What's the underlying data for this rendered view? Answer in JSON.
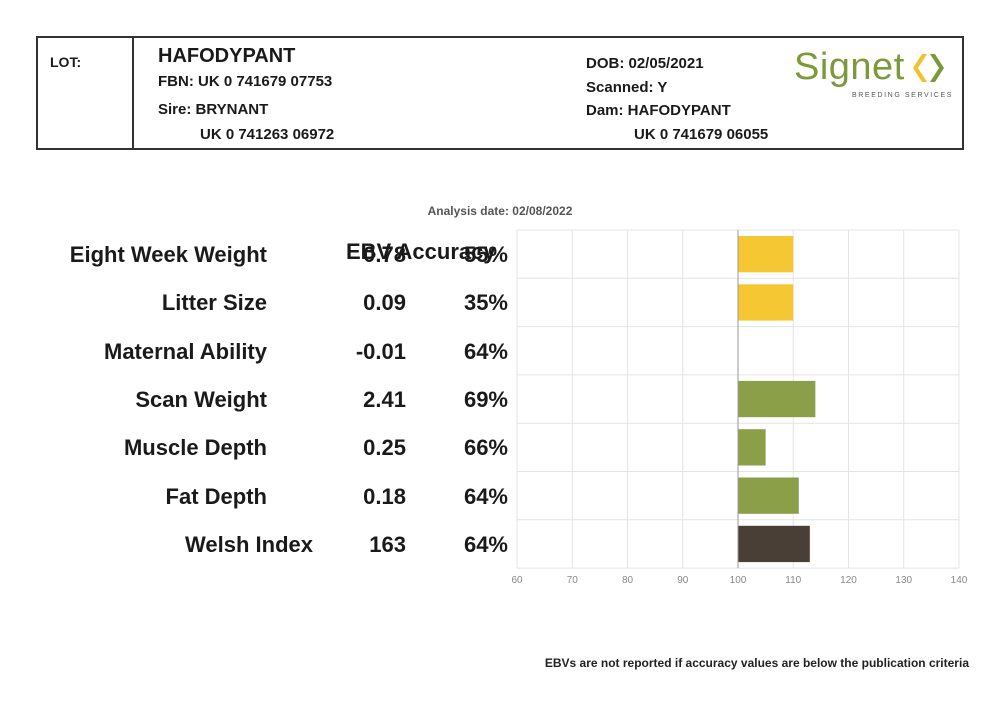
{
  "header": {
    "lot_label": "LOT:",
    "animal_name": "HAFODYPANT",
    "fbn": "FBN: UK 0 741679 07753",
    "sire": "Sire: BRYNANT",
    "sire_id": "UK 0 741263 06972",
    "dob": "DOB: 02/05/2021",
    "scanned": "Scanned: Y",
    "dam": "Dam: HAFODYPANT",
    "dam_id": "UK 0 741679 06055"
  },
  "logo": {
    "word": "Signet",
    "subtitle": "BREEDING SERVICES",
    "color_green": "#7c9a3c",
    "color_yellow": "#f2c12e"
  },
  "analysis_date": "Analysis date: 02/08/2022",
  "column_header": "EBV Accuracy",
  "footnote": "EBVs are not reported if accuracy values are below the publication criteria",
  "chart_data": {
    "type": "bar",
    "orientation": "horizontal",
    "baseline": 100,
    "xlim": [
      60,
      140
    ],
    "xticks": [
      60,
      70,
      80,
      90,
      100,
      110,
      120,
      130,
      140
    ],
    "grid": true,
    "categories": [
      "Eight Week Weight",
      "Litter Size",
      "Maternal Ability",
      "Scan Weight",
      "Muscle Depth",
      "Fat Depth",
      "Welsh Index"
    ],
    "ebv": [
      "0.78",
      "0.09",
      "-0.01",
      "2.41",
      "0.25",
      "0.18",
      "163"
    ],
    "accuracy": [
      "55%",
      "35%",
      "64%",
      "69%",
      "66%",
      "64%",
      "64%"
    ],
    "values": [
      110,
      110,
      null,
      114,
      105,
      111,
      113
    ],
    "colors": [
      "#f5c833",
      "#f5c833",
      "#f5c833",
      "#8b9e48",
      "#8b9e48",
      "#8b9e48",
      "#4a3f36"
    ]
  }
}
